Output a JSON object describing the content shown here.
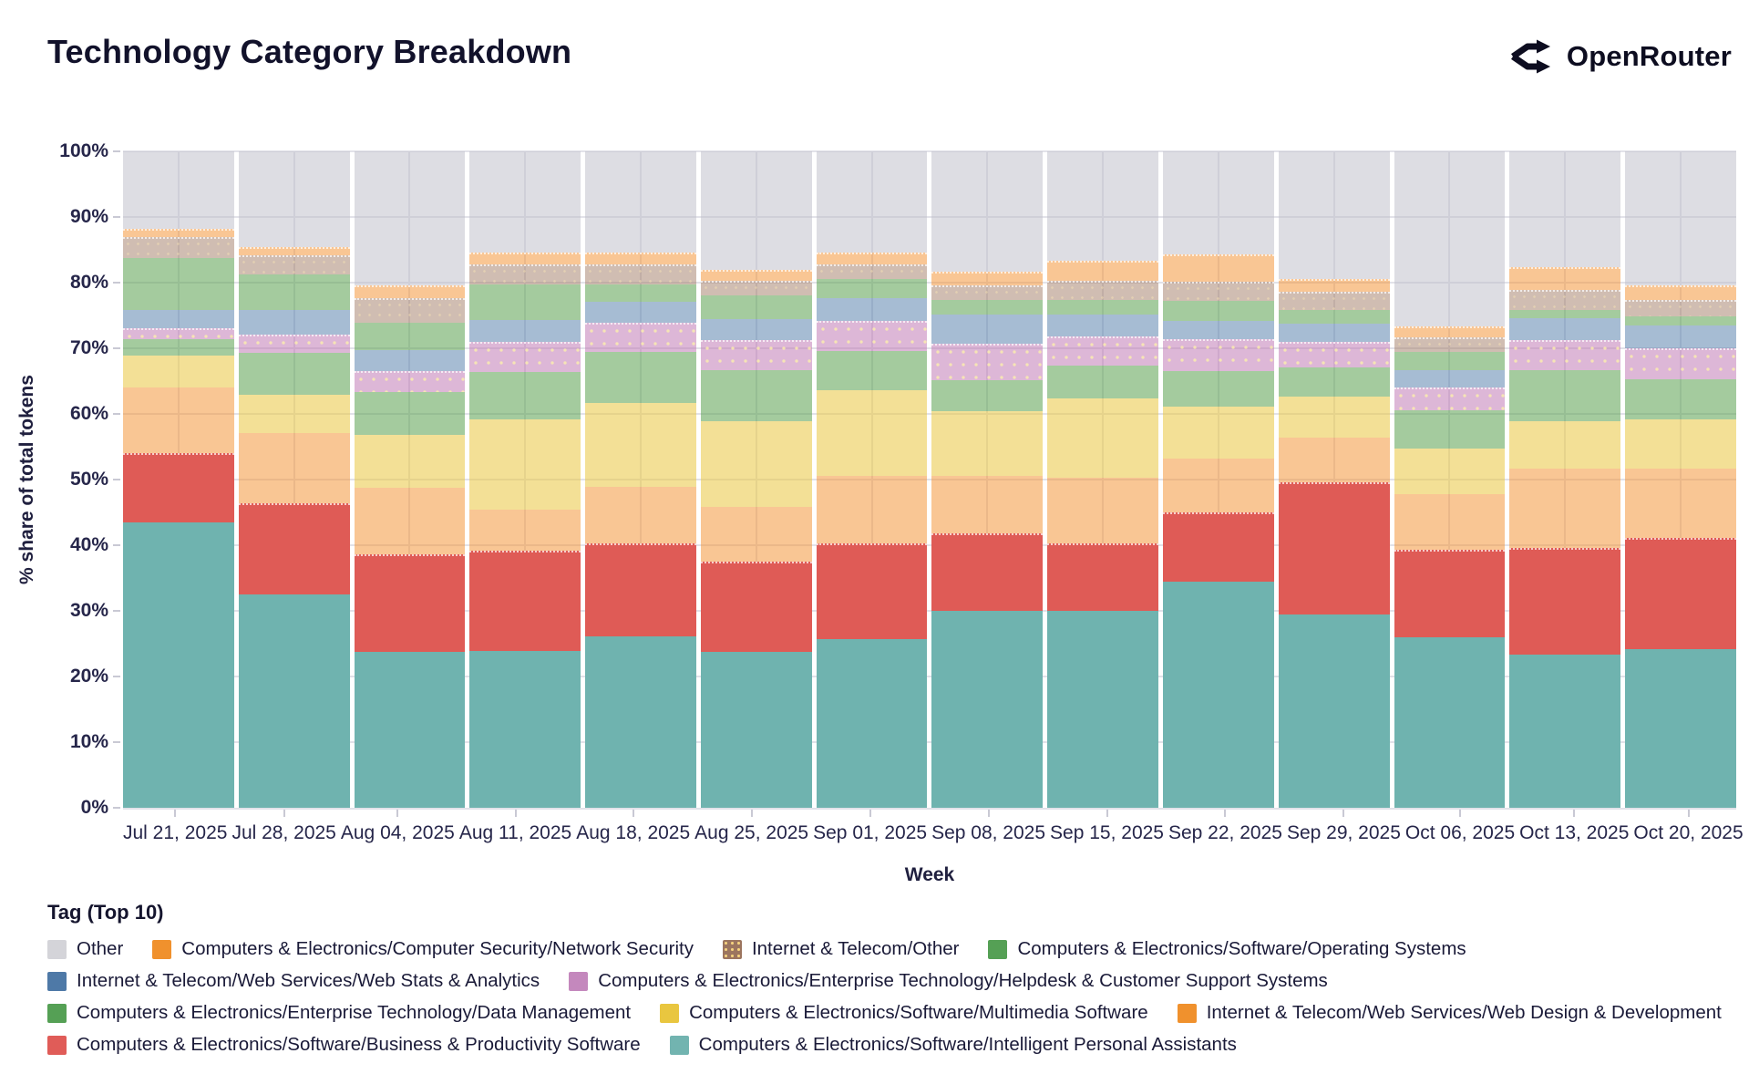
{
  "header": {
    "title": "Technology Category Breakdown",
    "brand": "OpenRouter"
  },
  "chart_data": {
    "type": "bar",
    "subtype": "100%-stacked-vertical-columns",
    "title": "Technology Category Breakdown",
    "xlabel": "Week",
    "ylabel": "% share of total tokens",
    "ylim": [
      0,
      100
    ],
    "yticks": [
      0,
      10,
      20,
      30,
      40,
      50,
      60,
      70,
      80,
      90,
      100
    ],
    "ytick_suffix": "%",
    "grid": true,
    "legend_title": "Tag (Top 10)",
    "legend_position": "bottom-left",
    "categories": [
      "Jul 21, 2025",
      "Jul 28, 2025",
      "Aug 04, 2025",
      "Aug 11, 2025",
      "Aug 18, 2025",
      "Aug 25, 2025",
      "Sep 01, 2025",
      "Sep 08, 2025",
      "Sep 15, 2025",
      "Sep 22, 2025",
      "Sep 29, 2025",
      "Oct 06, 2025",
      "Oct 13, 2025",
      "Oct 20, 2025"
    ],
    "stack_order": "bottom-to-top",
    "series": [
      {
        "key": "ipa",
        "name": "Computers & Electronics/Software/Intelligent Personal Assistants",
        "legend_color": "#72b4b0",
        "fill": "rgb(111,179,175)",
        "values": [
          44.0,
          32.8,
          24.0,
          24.2,
          26.4,
          24.0,
          26.0,
          30.3,
          30.3,
          34.8,
          29.8,
          26.3,
          23.6,
          24.4
        ]
      },
      {
        "key": "bps",
        "name": "Computers & Electronics/Software/Business & Productivity Software",
        "legend_color": "#e05c58",
        "fill": "rgb(223,91,86)",
        "values": [
          10.3,
          13.8,
          14.8,
          15.1,
          14.1,
          13.7,
          14.4,
          11.7,
          10.1,
          10.4,
          20.1,
          13.1,
          16.1,
          16.9
        ]
      },
      {
        "key": "wdd",
        "name": "Internet & Telecom/Web Services/Web Design & Development",
        "legend_color": "#f0912d",
        "fill": "rgba(243,146,50,0.52)",
        "values": [
          10.2,
          10.9,
          10.2,
          6.4,
          8.6,
          8.3,
          10.5,
          8.9,
          10.2,
          8.3,
          6.9,
          8.6,
          12.3,
          10.7
        ]
      },
      {
        "key": "mm",
        "name": "Computers & Electronics/Software/Multimedia Software",
        "legend_color": "#e9c63f",
        "fill": "rgba(233,198,63,0.55)",
        "values": [
          4.9,
          5.9,
          8.2,
          13.9,
          13.0,
          13.3,
          13.2,
          9.9,
          12.2,
          8.0,
          6.3,
          7.0,
          7.3,
          7.6
        ]
      },
      {
        "key": "dm",
        "name": "Computers & Electronics/Enterprise Technology/Data Management",
        "legend_color": "#55a055",
        "fill": "rgba(89,161,79,0.55)",
        "values": [
          2.5,
          6.4,
          6.5,
          7.3,
          7.8,
          7.8,
          6.0,
          4.8,
          5.1,
          5.5,
          4.4,
          5.9,
          7.8,
          6.1
        ]
      },
      {
        "key": "hd",
        "name": "Computers & Electronics/Enterprise Technology/Helpdesk & Customer Support Systems",
        "legend_color": "#c488bd",
        "fill": "rgba(187,111,176,0.5)",
        "values": [
          1.4,
          2.5,
          3.0,
          4.3,
          4.2,
          4.4,
          4.4,
          5.3,
          4.1,
          4.7,
          3.7,
          3.3,
          4.4,
          4.5
        ]
      },
      {
        "key": "wsa",
        "name": "Internet & Telecom/Web Services/Web Stats & Analytics",
        "legend_color": "#4e79a7",
        "fill": "rgba(78,121,167,0.5)",
        "values": [
          2.8,
          3.8,
          3.2,
          3.4,
          3.3,
          3.2,
          3.4,
          4.5,
          3.4,
          2.8,
          2.8,
          2.6,
          3.4,
          3.5
        ]
      },
      {
        "key": "os",
        "name": "Computers & Electronics/Software/Operating Systems",
        "legend_color": "#55a055",
        "fill": "rgba(89,161,79,0.55)",
        "values": [
          8.0,
          5.5,
          4.2,
          5.4,
          2.6,
          3.6,
          3.0,
          2.2,
          2.2,
          3.1,
          2.1,
          2.9,
          1.2,
          1.4
        ]
      },
      {
        "key": "ito",
        "name": "Internet & Telecom/Other",
        "legend_color": "#9c755f",
        "legend_pattern": "dots",
        "fill": "rgba(156,117,95,0.48)",
        "values": [
          3.0,
          2.7,
          3.6,
          2.9,
          2.9,
          2.0,
          2.0,
          2.1,
          2.7,
          2.6,
          2.6,
          1.9,
          2.9,
          2.3
        ]
      },
      {
        "key": "ns",
        "name": "Computers & Electronics/Computer Security/Network Security",
        "legend_color": "#f0912d",
        "fill": "rgba(243,146,50,0.52)",
        "values": [
          0.9,
          0.9,
          1.6,
          1.5,
          1.5,
          1.4,
          1.5,
          1.8,
          2.8,
          4.0,
          1.7,
          1.4,
          3.2,
          1.9
        ]
      },
      {
        "key": "other",
        "name": "Other",
        "legend_color": "#d4d4d9",
        "fill": "rgba(188,188,200,0.5)",
        "values": [
          12.0,
          14.8,
          20.7,
          15.6,
          15.6,
          18.3,
          15.6,
          18.5,
          16.9,
          15.8,
          19.6,
          27.0,
          17.8,
          20.7
        ]
      }
    ],
    "legend_rows": [
      [
        "other",
        "ns",
        "ito",
        "os"
      ],
      [
        "wsa",
        "hd"
      ],
      [
        "dm",
        "mm",
        "wdd"
      ],
      [
        "bps",
        "ipa"
      ]
    ]
  }
}
